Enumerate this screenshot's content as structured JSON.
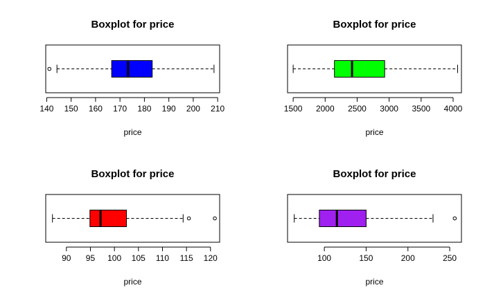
{
  "chart_data": [
    {
      "type": "boxplot",
      "orientation": "horizontal",
      "title": "Boxplot for price",
      "xlabel": "price",
      "color": "#0000ff",
      "xlim": [
        139.6,
        210.8
      ],
      "ticks": [
        140,
        150,
        160,
        170,
        180,
        190,
        200,
        210
      ],
      "stats": {
        "whisker_low": 144.2,
        "q1": 166.6,
        "median": 173.3,
        "q3": 183.2,
        "whisker_high": 208.5
      },
      "outliers": [
        141.1
      ]
    },
    {
      "type": "boxplot",
      "orientation": "horizontal",
      "title": "Boxplot for price",
      "xlabel": "price",
      "color": "#00ff00",
      "xlim": [
        1412,
        4130
      ],
      "ticks": [
        1500,
        2000,
        2500,
        3000,
        3500,
        4000
      ],
      "stats": {
        "whisker_low": 1500,
        "q1": 2145,
        "median": 2420,
        "q3": 2930,
        "whisker_high": 4070
      },
      "outliers": []
    },
    {
      "type": "boxplot",
      "orientation": "horizontal",
      "title": "Boxplot for price",
      "xlabel": "price",
      "color": "#ff0000",
      "xlim": [
        85.7,
        121.9
      ],
      "ticks": [
        90,
        95,
        100,
        105,
        110,
        115,
        120
      ],
      "stats": {
        "whisker_low": 87.1,
        "q1": 94.9,
        "median": 97.1,
        "q3": 102.5,
        "whisker_high": 114.3
      },
      "outliers": [
        115.5,
        120.9
      ]
    },
    {
      "type": "boxplot",
      "orientation": "horizontal",
      "title": "Boxplot for price",
      "xlabel": "price",
      "color": "#a020f0",
      "xlim": [
        56,
        264
      ],
      "ticks": [
        100,
        150,
        200,
        250
      ],
      "stats": {
        "whisker_low": 64,
        "q1": 94,
        "median": 115,
        "q3": 150,
        "whisker_high": 230
      },
      "outliers": [
        256
      ]
    }
  ]
}
